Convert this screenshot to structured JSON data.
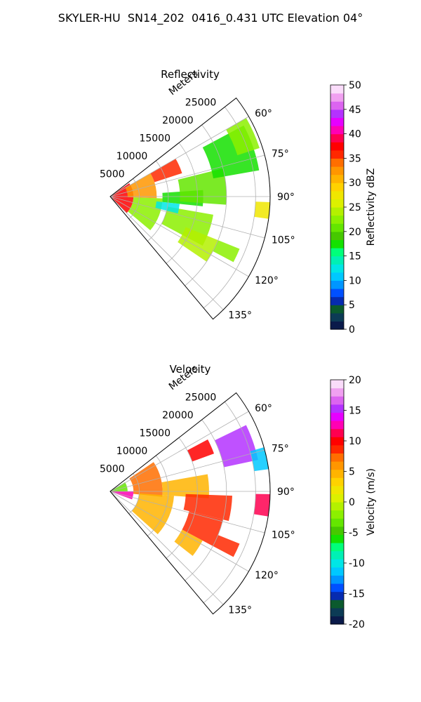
{
  "figure": {
    "title": "SKYLER-HU  SN14_202  0416_0.431 UTC Elevation 04°"
  },
  "chart_data": [
    {
      "type": "heatmap",
      "projection": "polar-sector",
      "title": "Reflectivity",
      "radial_axis_label": "Meters",
      "radial_ticks": [
        5000,
        10000,
        15000,
        20000,
        25000
      ],
      "radial_max": 27500,
      "angle_ticks": [
        "60°",
        "75°",
        "90°",
        "105°",
        "120°",
        "135°"
      ],
      "angle_range_deg": [
        52,
        140
      ],
      "grid": true,
      "colorbar": {
        "label": "Reflectivity dBZ",
        "min": 0,
        "max": 50,
        "ticks": [
          0,
          5,
          10,
          15,
          20,
          25,
          30,
          35,
          40,
          45,
          50
        ],
        "colors": [
          "#0a1a4a",
          "#0c3b55",
          "#0b5a2e",
          "#062bb0",
          "#0050ff",
          "#0096ff",
          "#00c8ff",
          "#00e6e6",
          "#00f0b4",
          "#00ff7a",
          "#14e100",
          "#46c800",
          "#64e600",
          "#8cf000",
          "#b4f000",
          "#dcf000",
          "#f0e600",
          "#ffd200",
          "#ffb400",
          "#ff9600",
          "#ff6e00",
          "#ff2800",
          "#ff0000",
          "#ff0050",
          "#ff00b4",
          "#e600ff",
          "#b432ff",
          "#dc64f0",
          "#f0a0f0",
          "#fadcfa"
        ]
      },
      "cells": [
        {
          "radius_range": [
            0,
            4000
          ],
          "angle_range_deg": [
            55,
            135
          ],
          "value": 38
        },
        {
          "radius_range": [
            3000,
            8000
          ],
          "angle_range_deg": [
            60,
            92
          ],
          "value": 33
        },
        {
          "radius_range": [
            4000,
            9000
          ],
          "angle_range_deg": [
            92,
            130
          ],
          "value": 22
        },
        {
          "radius_range": [
            8000,
            13000
          ],
          "angle_range_deg": [
            60,
            72
          ],
          "value": 36
        },
        {
          "radius_range": [
            9000,
            16000
          ],
          "angle_range_deg": [
            86,
            96
          ],
          "value": 18
        },
        {
          "radius_range": [
            12000,
            20000
          ],
          "angle_range_deg": [
            76,
            94
          ],
          "value": 20
        },
        {
          "radius_range": [
            10000,
            18000
          ],
          "angle_range_deg": [
            100,
            118
          ],
          "value": 22
        },
        {
          "radius_range": [
            14000,
            20000
          ],
          "angle_range_deg": [
            112,
            124
          ],
          "value": 24
        },
        {
          "radius_range": [
            18000,
            26000
          ],
          "angle_range_deg": [
            62,
            80
          ],
          "value": 18
        },
        {
          "radius_range": [
            23000,
            27000
          ],
          "angle_range_deg": [
            60,
            72
          ],
          "value": 22
        },
        {
          "radius_range": [
            25000,
            27500
          ],
          "angle_range_deg": [
            92,
            98
          ],
          "value": 27
        },
        {
          "radius_range": [
            20000,
            24000
          ],
          "angle_range_deg": [
            112,
            118
          ],
          "value": 23
        },
        {
          "radius_range": [
            8000,
            12000
          ],
          "angle_range_deg": [
            96,
            104
          ],
          "value": 12
        }
      ]
    },
    {
      "type": "heatmap",
      "projection": "polar-sector",
      "title": "Velocity",
      "radial_axis_label": "Meters",
      "radial_ticks": [
        5000,
        10000,
        15000,
        20000,
        25000
      ],
      "radial_max": 27500,
      "angle_ticks": [
        "60°",
        "75°",
        "90°",
        "105°",
        "120°",
        "135°"
      ],
      "angle_range_deg": [
        52,
        140
      ],
      "grid": true,
      "colorbar": {
        "label": "Velocity (m/s)",
        "min": -20,
        "max": 20,
        "ticks": [
          -20,
          -15,
          -10,
          -5,
          0,
          5,
          10,
          15,
          20
        ],
        "colors": [
          "#0a1a4a",
          "#0c3b55",
          "#0b5a2e",
          "#062bb0",
          "#0050ff",
          "#0096ff",
          "#00c8ff",
          "#00e6e6",
          "#00f0b4",
          "#00ff7a",
          "#14e100",
          "#46c800",
          "#64e600",
          "#8cf000",
          "#b4f000",
          "#dcf000",
          "#f0e600",
          "#ffd200",
          "#ffb400",
          "#ff9600",
          "#ff6e00",
          "#ff2800",
          "#ff0000",
          "#ff0050",
          "#ff00b4",
          "#e600ff",
          "#b432ff",
          "#dc64f0",
          "#f0a0f0",
          "#fadcfa"
        ]
      },
      "cells": [
        {
          "radius_range": [
            0,
            3000
          ],
          "angle_range_deg": [
            58,
            90
          ],
          "value": -3
        },
        {
          "radius_range": [
            0,
            4000
          ],
          "angle_range_deg": [
            90,
            110
          ],
          "value": 13
        },
        {
          "radius_range": [
            4000,
            9000
          ],
          "angle_range_deg": [
            56,
            96
          ],
          "value": 7
        },
        {
          "radius_range": [
            5000,
            11000
          ],
          "angle_range_deg": [
            94,
            132
          ],
          "value": 4
        },
        {
          "radius_range": [
            9000,
            17000
          ],
          "angle_range_deg": [
            80,
            94
          ],
          "value": 5
        },
        {
          "radius_range": [
            13000,
            21000
          ],
          "angle_range_deg": [
            92,
            104
          ],
          "value": 8
        },
        {
          "radius_range": [
            14000,
            20000
          ],
          "angle_range_deg": [
            104,
            118
          ],
          "value": 9
        },
        {
          "radius_range": [
            14000,
            18000
          ],
          "angle_range_deg": [
            118,
            128
          ],
          "value": 5
        },
        {
          "radius_range": [
            20000,
            26000
          ],
          "angle_range_deg": [
            64,
            78
          ],
          "value": 15
        },
        {
          "radius_range": [
            25000,
            27500
          ],
          "angle_range_deg": [
            74,
            82
          ],
          "value": -11
        },
        {
          "radius_range": [
            25000,
            27500
          ],
          "angle_range_deg": [
            91,
            99
          ],
          "value": 11
        },
        {
          "radius_range": [
            20000,
            24000
          ],
          "angle_range_deg": [
            112,
            118
          ],
          "value": 8
        },
        {
          "radius_range": [
            15000,
            19000
          ],
          "angle_range_deg": [
            62,
            70
          ],
          "value": 10
        }
      ]
    }
  ]
}
